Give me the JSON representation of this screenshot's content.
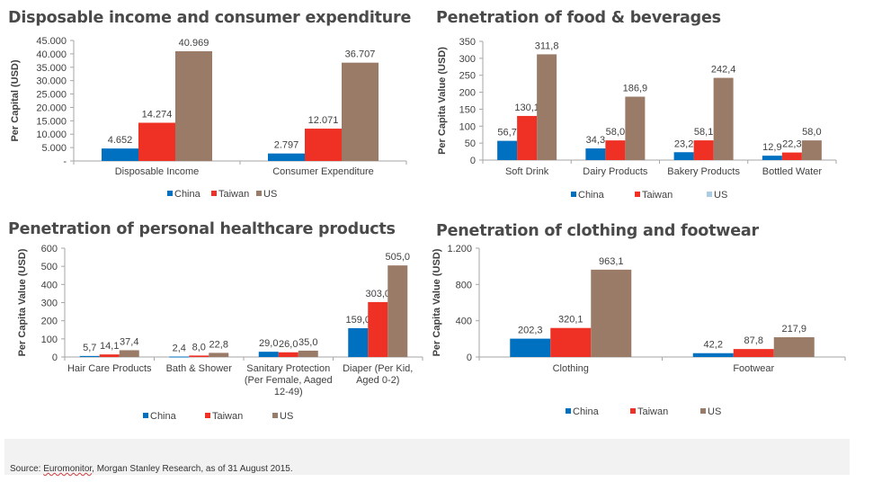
{
  "colors": {
    "China": "#0070c0",
    "Taiwan": "#ee3124",
    "US": "#9a7b67",
    "US_legend_food": "#a9cce3"
  },
  "footer": {
    "source_prefix": "Source: ",
    "source_squiggle": "Euromonitor",
    "source_rest": ", Morgan Stanley Research, as of 31 August 2015."
  },
  "chart_data": [
    {
      "type": "bar",
      "title": "Disposable income and consumer expenditure",
      "xlabel": "",
      "ylabel": "Per Capital (USD)",
      "ylim": [
        0,
        45000
      ],
      "yticks": [
        0,
        5000,
        10000,
        15000,
        20000,
        25000,
        30000,
        35000,
        40000,
        45000
      ],
      "ytick_labels": [
        "-",
        "5.000",
        "10.000",
        "15.000",
        "20.000",
        "25.000",
        "30.000",
        "35.000",
        "40.000",
        "45.000"
      ],
      "categories": [
        [
          "Disposable Income"
        ],
        [
          "Consumer Expenditure"
        ]
      ],
      "series": [
        {
          "name": "China",
          "values": [
            4652,
            2797
          ],
          "labels": [
            "4.652",
            "2.797"
          ]
        },
        {
          "name": "Taiwan",
          "values": [
            14274,
            12071
          ],
          "labels": [
            "14.274",
            "12.071"
          ]
        },
        {
          "name": "US",
          "values": [
            40969,
            36707
          ],
          "labels": [
            "40.969",
            "36.707"
          ]
        }
      ],
      "legend": {
        "position": "bottom",
        "entries": [
          "China",
          "Taiwan",
          "US"
        ]
      },
      "grid": false
    },
    {
      "type": "bar",
      "title": "Penetration of food & beverages",
      "xlabel": "",
      "ylabel": "Per Capita Value (USD)",
      "ylim": [
        0,
        350
      ],
      "yticks": [
        0,
        50,
        100,
        150,
        200,
        250,
        300,
        350
      ],
      "ytick_labels": [
        "0",
        "50",
        "100",
        "150",
        "200",
        "250",
        "300",
        "350"
      ],
      "categories": [
        [
          "Soft Drink"
        ],
        [
          "Dairy Products"
        ],
        [
          "Bakery Products"
        ],
        [
          "Bottled Water"
        ]
      ],
      "series": [
        {
          "name": "China",
          "values": [
            56.7,
            34.3,
            23.2,
            12.9
          ],
          "labels": [
            "56,7",
            "34,3",
            "23,2",
            "12,9"
          ]
        },
        {
          "name": "Taiwan",
          "values": [
            130.1,
            58.0,
            58.1,
            22.3
          ],
          "labels": [
            "130,1",
            "58,0",
            "58,1",
            "22,3"
          ]
        },
        {
          "name": "US",
          "values": [
            311.8,
            186.9,
            242.4,
            58.0
          ],
          "labels": [
            "311,8",
            "186,9",
            "242,4",
            "58,0"
          ]
        }
      ],
      "legend": {
        "position": "bottom",
        "entries": [
          "China",
          "Taiwan",
          "US"
        ]
      },
      "grid": false
    },
    {
      "type": "bar",
      "title": "Penetration of personal healthcare products",
      "xlabel": "",
      "ylabel": "Per Capita Value (USD)",
      "ylim": [
        0,
        600
      ],
      "yticks": [
        0,
        100,
        200,
        300,
        400,
        500,
        600
      ],
      "ytick_labels": [
        "0",
        "100",
        "200",
        "300",
        "400",
        "500",
        "600"
      ],
      "categories": [
        [
          "Hair Care Products"
        ],
        [
          "Bath & Shower"
        ],
        [
          "Sanitary Protection",
          "(Per Female, Aaged",
          "12-49)"
        ],
        [
          "Diaper (Per Kid,",
          "Aged 0-2)"
        ]
      ],
      "series": [
        {
          "name": "China",
          "values": [
            5.7,
            2.4,
            29.0,
            159.0
          ],
          "labels": [
            "5,7",
            "2,4",
            "29,0",
            "159,0"
          ]
        },
        {
          "name": "Taiwan",
          "values": [
            14.1,
            8.0,
            26.0,
            303.0
          ],
          "labels": [
            "14,1",
            "8,0",
            "26,0",
            "303,0"
          ]
        },
        {
          "name": "US",
          "values": [
            37.4,
            22.8,
            35.0,
            505.0
          ],
          "labels": [
            "37,4",
            "22,8",
            "35,0",
            "505,0"
          ]
        }
      ],
      "legend": {
        "position": "bottom",
        "entries": [
          "China",
          "Taiwan",
          "US"
        ]
      },
      "grid": false
    },
    {
      "type": "bar",
      "title": "Penetration of clothing and footwear",
      "xlabel": "",
      "ylabel": "Per Capita Value (USD)",
      "ylim": [
        0,
        1200
      ],
      "yticks": [
        0,
        400,
        800,
        1200
      ],
      "ytick_labels": [
        "0",
        "400",
        "800",
        "1.200"
      ],
      "categories": [
        [
          "Clothing"
        ],
        [
          "Footwear"
        ]
      ],
      "series": [
        {
          "name": "China",
          "values": [
            202.3,
            42.2
          ],
          "labels": [
            "202,3",
            "42,2"
          ]
        },
        {
          "name": "Taiwan",
          "values": [
            320.1,
            87.8
          ],
          "labels": [
            "320,1",
            "87,8"
          ]
        },
        {
          "name": "US",
          "values": [
            963.1,
            217.9
          ],
          "labels": [
            "963,1",
            "217,9"
          ]
        }
      ],
      "legend": {
        "position": "bottom",
        "entries": [
          "China",
          "Taiwan",
          "US"
        ]
      },
      "grid": false
    }
  ]
}
